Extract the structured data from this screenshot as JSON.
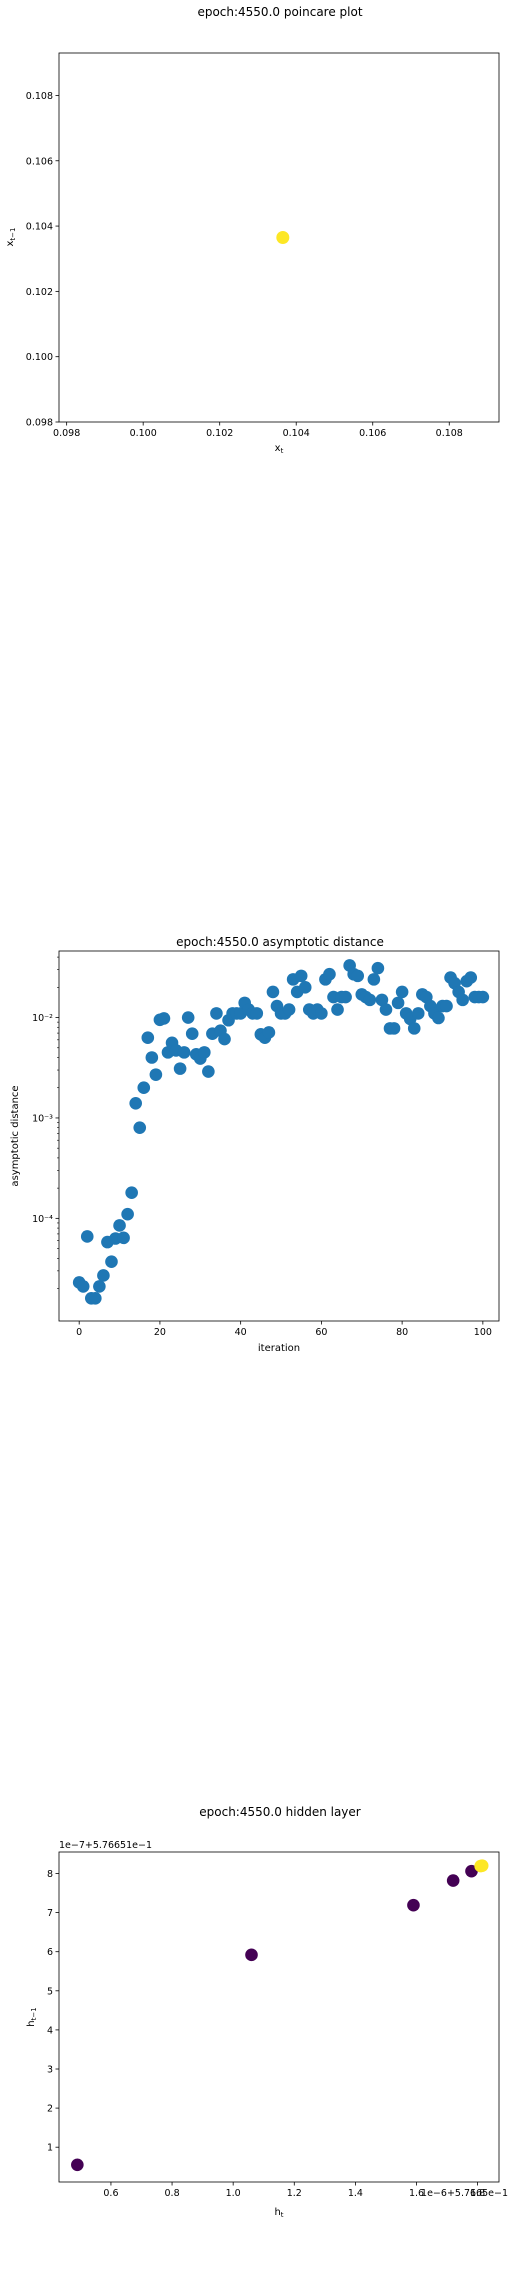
{
  "chart_data": [
    {
      "type": "scatter",
      "title": "epoch:4550.0 poincare plot",
      "xlabel": "x_t",
      "ylabel": "x_{t-1}",
      "xlim": [
        0.0978,
        0.1093
      ],
      "ylim": [
        0.098,
        0.1093
      ],
      "xticks": [
        "0.098",
        "0.100",
        "0.102",
        "0.104",
        "0.106",
        "0.108"
      ],
      "xtick_values": [
        0.098,
        0.1,
        0.102,
        0.104,
        0.106,
        0.108
      ],
      "yticks": [
        "0.098",
        "0.100",
        "0.102",
        "0.104",
        "0.106",
        "0.108"
      ],
      "ytick_values": [
        0.098,
        0.1,
        0.102,
        0.104,
        0.106,
        0.108
      ],
      "points": [
        {
          "x": 0.10365,
          "y": 0.10365
        }
      ],
      "color": "#fde725",
      "grid": false
    },
    {
      "type": "scatter",
      "title": "epoch:4550.0 asymptotic distance",
      "xlabel": "iteration",
      "ylabel": "asymptotic distance",
      "yscale": "log",
      "xlim": [
        -5,
        104
      ],
      "ylim": [
        9.5e-06,
        0.046
      ],
      "xticks": [
        "0",
        "20",
        "40",
        "60",
        "80",
        "100"
      ],
      "xtick_values": [
        0,
        20,
        40,
        60,
        80,
        100
      ],
      "yticks": [
        "10⁻⁴",
        "10⁻³",
        "10⁻²"
      ],
      "ytick_values": [
        0.0001,
        0.001,
        0.01
      ],
      "color": "#1f77b4",
      "grid": false,
      "x": [
        0,
        1,
        2,
        3,
        4,
        5,
        6,
        7,
        8,
        9,
        10,
        11,
        12,
        13,
        14,
        15,
        16,
        17,
        18,
        19,
        20,
        21,
        22,
        23,
        24,
        25,
        26,
        27,
        28,
        29,
        30,
        31,
        32,
        33,
        34,
        35,
        36,
        37,
        38,
        39,
        40,
        41,
        42,
        43,
        44,
        45,
        46,
        47,
        48,
        49,
        50,
        51,
        52,
        53,
        54,
        55,
        56,
        57,
        58,
        59,
        60,
        61,
        62,
        63,
        64,
        65,
        66,
        67,
        68,
        69,
        70,
        71,
        72,
        73,
        74,
        75,
        76,
        77,
        78,
        79,
        80,
        81,
        82,
        83,
        84,
        85,
        86,
        87,
        88,
        89,
        90,
        91,
        92,
        93,
        94,
        95,
        96,
        97,
        98,
        99,
        100
      ],
      "y": [
        2.3e-05,
        2.1e-05,
        6.6e-05,
        1.6e-05,
        1.6e-05,
        2.1e-05,
        2.7e-05,
        5.8e-05,
        3.7e-05,
        6.3e-05,
        8.5e-05,
        6.4e-05,
        0.00011,
        0.00018,
        0.0014,
        0.0008,
        0.002,
        0.0063,
        0.004,
        0.0027,
        0.0095,
        0.0098,
        0.0045,
        0.0056,
        0.0047,
        0.0031,
        0.0045,
        0.01,
        0.0069,
        0.0043,
        0.0039,
        0.0045,
        0.0029,
        0.0069,
        0.011,
        0.0074,
        0.0061,
        0.0094,
        0.011,
        0.011,
        0.011,
        0.014,
        0.012,
        0.011,
        0.011,
        0.0068,
        0.0063,
        0.0071,
        0.018,
        0.013,
        0.011,
        0.011,
        0.012,
        0.024,
        0.018,
        0.026,
        0.02,
        0.012,
        0.011,
        0.012,
        0.011,
        0.024,
        0.027,
        0.016,
        0.012,
        0.016,
        0.016,
        0.033,
        0.027,
        0.026,
        0.017,
        0.016,
        0.015,
        0.024,
        0.031,
        0.015,
        0.012,
        0.0078,
        0.0078,
        0.014,
        0.018,
        0.011,
        0.0097,
        0.0078,
        0.011,
        0.017,
        0.016,
        0.013,
        0.011,
        0.0099,
        0.013,
        0.013,
        0.025,
        0.022,
        0.018,
        0.015,
        0.023,
        0.025,
        0.016,
        0.016,
        0.016
      ]
    },
    {
      "type": "scatter",
      "title": "epoch:4550.0 hidden layer",
      "xlabel": "h_t",
      "ylabel": "h_{t-1}",
      "x_offset_text": "1e−6+5.7665e−1",
      "y_offset_text": "1e−7+5.76651e−1",
      "xlim": [
        0.43,
        1.87
      ],
      "ylim": [
        0.11,
        8.55
      ],
      "xticks": [
        "0.6",
        "0.8",
        "1.0",
        "1.2",
        "1.4",
        "1.6",
        "1.8"
      ],
      "xtick_values": [
        0.6,
        0.8,
        1.0,
        1.2,
        1.4,
        1.6,
        1.8
      ],
      "yticks": [
        "1",
        "2",
        "3",
        "4",
        "5",
        "6",
        "7",
        "8"
      ],
      "ytick_values": [
        1,
        2,
        3,
        4,
        5,
        6,
        7,
        8
      ],
      "points": [
        {
          "x": 0.49,
          "y": 0.55,
          "color": "#440154"
        },
        {
          "x": 1.06,
          "y": 5.92,
          "color": "#440154"
        },
        {
          "x": 1.59,
          "y": 7.19,
          "color": "#440154"
        },
        {
          "x": 1.72,
          "y": 7.82,
          "color": "#440154"
        },
        {
          "x": 1.78,
          "y": 8.06,
          "color": "#440154"
        },
        {
          "x": 1.81,
          "y": 8.19,
          "color": "#fde725"
        },
        {
          "x": 1.815,
          "y": 8.2,
          "color": "#fde725"
        }
      ],
      "grid": false
    }
  ]
}
